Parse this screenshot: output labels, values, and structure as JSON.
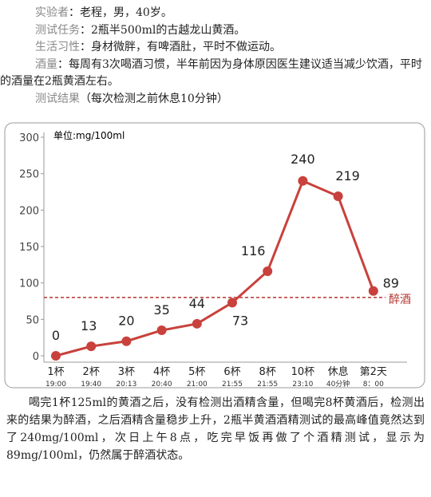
{
  "header": {
    "lines": [
      {
        "label": "实验者",
        "text": "：老程，男，40岁。"
      },
      {
        "label": "测试任务",
        "text": "：2瓶半500ml的古越龙山黄酒。"
      },
      {
        "label": "生活习性",
        "text": "：身材微胖，有啤酒肚，平时不做运动。"
      },
      {
        "label": "酒量",
        "text": "：每周有3次喝酒习惯，半年前因为身体原因医生建议适当减少饮酒，平时的酒量在2瓶黄酒左右。"
      }
    ],
    "result_title": "测试结果",
    "result_note": "（每次检测之前休息10分钟）"
  },
  "chart_data": {
    "type": "line",
    "unit_label": "单位:mg/100ml",
    "categories": [
      "1杯",
      "2杯",
      "3杯",
      "4杯",
      "5杯",
      "6杯",
      "8杯",
      "10杯",
      "休息",
      "第2天"
    ],
    "category_times": [
      "19:00",
      "19:40",
      "20:13",
      "20:40",
      "21:00",
      "21:55",
      "21:55",
      "23:10",
      "40分钟",
      "8：00"
    ],
    "series": [
      {
        "color": "#c8413c",
        "values": [
          0,
          13,
          20,
          35,
          44,
          73,
          116,
          240,
          219,
          89
        ]
      }
    ],
    "ylim": [
      0,
      300
    ],
    "yticks": [
      0,
      50,
      100,
      150,
      200,
      250,
      300
    ],
    "threshold": {
      "value": 80,
      "label": "醉酒",
      "color": "#b5352f"
    }
  },
  "paragraph": "喝完1杯125ml的黄酒之后，没有检测出酒精含量，但喝完8杯黄酒后，检测出来的结果为醉酒，之后酒精含量稳步上升，2瓶半黄酒酒精测试的最高峰值竟然达到了240mg/100ml，次日上午8点，吃完早饭再做了个酒精测试，显示为89mg/100ml，仍然属于醉酒状态。"
}
